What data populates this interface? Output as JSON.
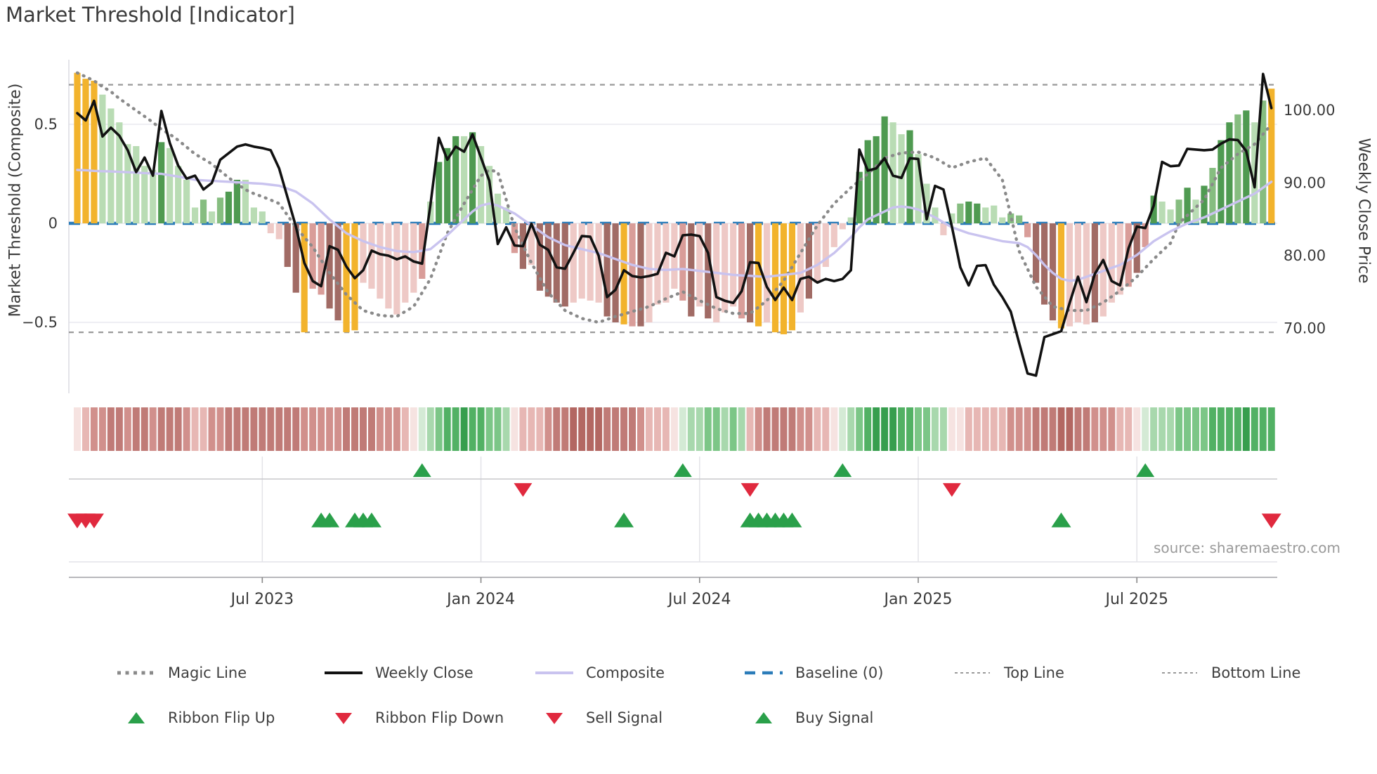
{
  "title": "Market Threshold [Indicator]",
  "source": "source: sharemaestro.com",
  "axes": {
    "left_label": "Market Threshold (Composite)",
    "right_label": "Weekly Close Price",
    "left_ticks": [
      {
        "label": "0.5",
        "value": 0.5
      },
      {
        "label": "0",
        "value": 0
      },
      {
        "label": "−0.5",
        "value": -0.5
      }
    ],
    "right_ticks": [
      {
        "label": "100.00",
        "value": 100
      },
      {
        "label": "90.00",
        "value": 90
      },
      {
        "label": "80.00",
        "value": 80
      },
      {
        "label": "70.00",
        "value": 70
      }
    ],
    "x_ticks": [
      {
        "label": "Jul 2023",
        "week": 22
      },
      {
        "label": "Jan 2024",
        "week": 48
      },
      {
        "label": "Jul 2024",
        "week": 74
      },
      {
        "label": "Jan 2025",
        "week": 100
      },
      {
        "label": "Jul 2025",
        "week": 126
      }
    ]
  },
  "colors": {
    "bar_yellow": "#f2b32c",
    "bar_green_light": "#b9dcb4",
    "bar_green_mid": "#86bd80",
    "bar_green_dark": "#4f9a51",
    "bar_pink_light": "#eec9c6",
    "bar_pink_mid": "#d99d99",
    "bar_brown": "#a16b65",
    "ribbon_reds": [
      "#f6e3e1",
      "#e7b7b4",
      "#d1908c",
      "#c07b77",
      "#b36762"
    ],
    "ribbon_greens": [
      "#d4ead5",
      "#a8d8ad",
      "#7cc687",
      "#52b164",
      "#379e4e"
    ],
    "weekly_close": "#111111",
    "composite": "#c9c3ef",
    "magic": "#8a8a8a",
    "baseline": "#2b7cb9",
    "top_bottom": "#999999",
    "buy": "#2aa04a",
    "sell": "#e0293e",
    "grid": "#e9e9ef",
    "panel_line": "#c8c8cc",
    "spine": "#b8b8bc"
  },
  "legend": {
    "row1": [
      {
        "label": "Magic Line",
        "type": "magic"
      },
      {
        "label": "Weekly Close",
        "type": "close"
      },
      {
        "label": "Composite",
        "type": "composite"
      },
      {
        "label": "Baseline (0)",
        "type": "baseline"
      },
      {
        "label": "Top Line",
        "type": "fine-dash"
      },
      {
        "label": "Bottom Line",
        "type": "fine-dash"
      }
    ],
    "row2": [
      {
        "label": "Ribbon Flip Up",
        "type": "tri-up"
      },
      {
        "label": "Ribbon Flip Down",
        "type": "tri-down"
      },
      {
        "label": "Sell Signal",
        "type": "tri-down"
      },
      {
        "label": "Buy Signal",
        "type": "tri-up"
      }
    ]
  },
  "chart_data": {
    "type": "bar+line combo with heatmap ribbon and signal markers",
    "title": "Market Threshold [Indicator]",
    "weeks": 143,
    "x_range_note": "weekly data, ticks at weeks 22/48/74/100/126 = Jul 2023..Jul 2025",
    "ylim_left": [
      -0.86,
      0.83
    ],
    "ylim_right": [
      61,
      107
    ],
    "top_line": 0.7,
    "bottom_line": -0.55,
    "baseline": 0,
    "threshold_bars": [
      0.76,
      0.73,
      0.72,
      0.65,
      0.58,
      0.51,
      0.4,
      0.39,
      0.29,
      0.27,
      0.41,
      0.38,
      0.29,
      0.22,
      0.08,
      0.12,
      0.06,
      0.13,
      0.16,
      0.22,
      0.22,
      0.08,
      0.06,
      -0.05,
      -0.08,
      -0.22,
      -0.35,
      -0.55,
      -0.33,
      -0.36,
      -0.43,
      -0.49,
      -0.55,
      -0.54,
      -0.3,
      -0.33,
      -0.38,
      -0.43,
      -0.46,
      -0.4,
      -0.35,
      -0.28,
      0.11,
      0.31,
      0.38,
      0.44,
      0.44,
      0.46,
      0.39,
      0.29,
      0.15,
      0.08,
      -0.15,
      -0.23,
      -0.21,
      -0.34,
      -0.37,
      -0.4,
      -0.42,
      -0.4,
      -0.38,
      -0.39,
      -0.4,
      -0.47,
      -0.5,
      -0.51,
      -0.52,
      -0.52,
      -0.5,
      -0.41,
      -0.4,
      -0.33,
      -0.39,
      -0.47,
      -0.42,
      -0.48,
      -0.5,
      -0.45,
      -0.42,
      -0.48,
      -0.5,
      -0.52,
      -0.5,
      -0.55,
      -0.56,
      -0.54,
      -0.45,
      -0.38,
      -0.3,
      -0.22,
      -0.12,
      -0.03,
      0.03,
      0.26,
      0.42,
      0.44,
      0.54,
      0.51,
      0.45,
      0.47,
      0.35,
      0.2,
      0.08,
      -0.06,
      0.05,
      0.1,
      0.11,
      0.1,
      0.08,
      0.09,
      0.03,
      0.05,
      0.04,
      -0.07,
      -0.3,
      -0.41,
      -0.49,
      -0.53,
      -0.52,
      -0.5,
      -0.51,
      -0.5,
      -0.47,
      -0.4,
      -0.36,
      -0.32,
      -0.25,
      -0.12,
      0.14,
      0.11,
      0.07,
      0.12,
      0.18,
      0.12,
      0.19,
      0.28,
      0.42,
      0.51,
      0.55,
      0.57,
      0.51,
      0.62,
      0.68
    ],
    "bar_colors": [
      "Y",
      "Y",
      "Y",
      "g1",
      "g1",
      "g1",
      "g1",
      "g1",
      "g1",
      "g1",
      "g3",
      "g1",
      "g1",
      "g1",
      "g1",
      "g2",
      "g1",
      "g2",
      "g3",
      "g3",
      "g1",
      "g1",
      "g1",
      "p1",
      "p1",
      "p3",
      "p3",
      "Y",
      "p2",
      "p2",
      "p3",
      "p3",
      "Y",
      "Y",
      "p1",
      "p1",
      "p1",
      "p1",
      "p1",
      "p1",
      "p1",
      "p2",
      "g1",
      "g3",
      "g3",
      "g3",
      "g1",
      "g3",
      "g1",
      "g1",
      "g1",
      "g1",
      "p2",
      "p3",
      "p1",
      "p3",
      "p3",
      "p3",
      "p3",
      "p1",
      "p1",
      "p1",
      "p1",
      "p3",
      "p3",
      "Y",
      "p2",
      "p3",
      "p1",
      "p1",
      "p1",
      "p1",
      "p2",
      "p3",
      "p1",
      "p3",
      "p1",
      "p1",
      "p1",
      "p2",
      "p3",
      "Y",
      "p1",
      "Y",
      "Y",
      "Y",
      "p1",
      "p3",
      "p1",
      "p1",
      "p1",
      "p1",
      "g1",
      "g3",
      "g3",
      "g3",
      "g3",
      "g1",
      "g1",
      "g3",
      "g1",
      "g1",
      "g1",
      "p1",
      "g1",
      "g2",
      "g3",
      "g3",
      "g1",
      "g1",
      "g1",
      "g2",
      "g2",
      "p2",
      "p3",
      "p3",
      "p3",
      "Y",
      "p1",
      "p1",
      "p1",
      "p3",
      "p1",
      "p1",
      "p1",
      "p2",
      "p3",
      "p2",
      "g3",
      "g1",
      "g1",
      "g2",
      "g3",
      "g1",
      "g3",
      "g2",
      "g3",
      "g3",
      "g2",
      "g3",
      "g1",
      "g2",
      "Y"
    ],
    "weekly_close": [
      99.6,
      98.6,
      101.3,
      96.4,
      97.6,
      96.5,
      94.5,
      91.5,
      93.5,
      91.0,
      99.9,
      95.5,
      92.4,
      90.6,
      91.0,
      89.1,
      90.0,
      93.2,
      94.1,
      95.0,
      95.3,
      95.0,
      94.8,
      94.5,
      92.0,
      88.0,
      84.0,
      79.0,
      76.5,
      75.8,
      81.3,
      80.8,
      78.5,
      76.9,
      78.0,
      80.7,
      80.2,
      80.0,
      79.5,
      79.9,
      79.2,
      78.9,
      87.0,
      96.2,
      93.2,
      95.0,
      94.3,
      96.7,
      93.5,
      90.3,
      81.6,
      83.9,
      81.4,
      81.3,
      84.4,
      81.5,
      80.8,
      78.4,
      78.2,
      80.4,
      82.7,
      82.6,
      80.0,
      74.3,
      75.3,
      78.0,
      77.2,
      77.0,
      77.2,
      77.5,
      80.4,
      79.9,
      82.8,
      82.9,
      82.7,
      80.4,
      74.3,
      73.8,
      73.5,
      75.1,
      79.1,
      79.0,
      75.7,
      73.9,
      75.6,
      73.9,
      76.8,
      77.1,
      76.3,
      76.8,
      76.5,
      76.8,
      78.0,
      94.6,
      91.7,
      92.0,
      93.4,
      91.0,
      90.7,
      93.4,
      93.3,
      85.0,
      89.6,
      89.1,
      84.0,
      78.4,
      75.9,
      78.6,
      78.7,
      76.0,
      74.3,
      72.3,
      68.0,
      63.8,
      63.5,
      68.8,
      69.2,
      69.6,
      73.5,
      77.1,
      73.6,
      77.5,
      79.4,
      76.5,
      75.9,
      81.0,
      84.0,
      83.8,
      86.9,
      92.9,
      92.3,
      92.4,
      94.7,
      94.6,
      94.5,
      94.6,
      95.4,
      96.0,
      95.9,
      94.4,
      89.4,
      105.0,
      100.3
    ],
    "composite": [
      0.27,
      0.268,
      0.265,
      0.263,
      0.262,
      0.26,
      0.258,
      0.256,
      0.254,
      0.252,
      0.25,
      0.243,
      0.236,
      0.228,
      0.22,
      0.217,
      0.215,
      0.212,
      0.21,
      0.207,
      0.205,
      0.202,
      0.2,
      0.195,
      0.19,
      0.175,
      0.16,
      0.13,
      0.1,
      0.06,
      0.02,
      -0.015,
      -0.05,
      -0.07,
      -0.09,
      -0.105,
      -0.12,
      -0.13,
      -0.14,
      -0.143,
      -0.145,
      -0.138,
      -0.13,
      -0.095,
      -0.06,
      -0.02,
      0.02,
      0.06,
      0.09,
      0.1,
      0.09,
      0.07,
      0.05,
      0.02,
      -0.01,
      -0.04,
      -0.07,
      -0.09,
      -0.11,
      -0.12,
      -0.13,
      -0.14,
      -0.15,
      -0.165,
      -0.18,
      -0.195,
      -0.21,
      -0.22,
      -0.23,
      -0.233,
      -0.235,
      -0.233,
      -0.23,
      -0.235,
      -0.24,
      -0.245,
      -0.25,
      -0.255,
      -0.26,
      -0.263,
      -0.265,
      -0.268,
      -0.27,
      -0.265,
      -0.26,
      -0.255,
      -0.25,
      -0.23,
      -0.21,
      -0.18,
      -0.15,
      -0.11,
      -0.07,
      -0.02,
      0.02,
      0.04,
      0.06,
      0.08,
      0.085,
      0.08,
      0.07,
      0.05,
      0.03,
      0.005,
      -0.02,
      -0.035,
      -0.05,
      -0.06,
      -0.07,
      -0.08,
      -0.09,
      -0.095,
      -0.1,
      -0.12,
      -0.16,
      -0.21,
      -0.25,
      -0.28,
      -0.29,
      -0.285,
      -0.27,
      -0.255,
      -0.24,
      -0.225,
      -0.21,
      -0.185,
      -0.16,
      -0.125,
      -0.09,
      -0.065,
      -0.04,
      -0.02,
      0.0,
      0.015,
      0.03,
      0.05,
      0.07,
      0.09,
      0.11,
      0.13,
      0.15,
      0.18,
      0.21
    ],
    "magic_line": [
      0.76,
      0.74,
      0.72,
      0.69,
      0.665,
      0.63,
      0.6,
      0.57,
      0.54,
      0.51,
      0.475,
      0.45,
      0.42,
      0.385,
      0.35,
      0.325,
      0.3,
      0.265,
      0.23,
      0.2,
      0.17,
      0.15,
      0.135,
      0.118,
      0.1,
      0.04,
      -0.02,
      -0.07,
      -0.12,
      -0.185,
      -0.25,
      -0.305,
      -0.36,
      -0.4,
      -0.44,
      -0.453,
      -0.465,
      -0.468,
      -0.47,
      -0.445,
      -0.42,
      -0.35,
      -0.28,
      -0.165,
      -0.05,
      0.025,
      0.1,
      0.17,
      0.24,
      0.27,
      0.26,
      0.12,
      -0.02,
      -0.11,
      -0.2,
      -0.275,
      -0.35,
      -0.395,
      -0.44,
      -0.46,
      -0.48,
      -0.49,
      -0.5,
      -0.485,
      -0.47,
      -0.458,
      -0.445,
      -0.433,
      -0.42,
      -0.4,
      -0.38,
      -0.363,
      -0.345,
      -0.368,
      -0.39,
      -0.41,
      -0.43,
      -0.443,
      -0.455,
      -0.455,
      -0.455,
      -0.423,
      -0.39,
      -0.34,
      -0.29,
      -0.22,
      -0.15,
      -0.08,
      -0.01,
      0.045,
      0.1,
      0.14,
      0.18,
      0.215,
      0.25,
      0.29,
      0.33,
      0.343,
      0.355,
      0.358,
      0.36,
      0.345,
      0.33,
      0.305,
      0.28,
      0.295,
      0.31,
      0.32,
      0.33,
      0.275,
      0.22,
      0.04,
      -0.14,
      -0.23,
      -0.32,
      -0.37,
      -0.42,
      -0.43,
      -0.44,
      -0.44,
      -0.44,
      -0.42,
      -0.4,
      -0.37,
      -0.34,
      -0.305,
      -0.27,
      -0.225,
      -0.18,
      -0.14,
      -0.1,
      0.0,
      0.04,
      0.08,
      0.12,
      0.2,
      0.28,
      0.315,
      0.35,
      0.375,
      0.4,
      0.45,
      0.5
    ],
    "ribbon": [
      "r1",
      "r2",
      "r3",
      "r3",
      "r4",
      "r4",
      "r3",
      "r4",
      "r4",
      "r3",
      "r4",
      "r4",
      "r4",
      "r3",
      "r2",
      "r2",
      "r3",
      "r3",
      "r4",
      "r4",
      "r4",
      "r4",
      "r4",
      "r4",
      "r4",
      "r4",
      "r4",
      "r3",
      "r3",
      "r3",
      "r3",
      "r3",
      "r4",
      "r4",
      "r4",
      "r4",
      "r3",
      "r3",
      "r3",
      "r2",
      "r1",
      "g1",
      "g2",
      "g3",
      "g4",
      "g4",
      "g5",
      "g4",
      "g4",
      "g3",
      "g3",
      "g2",
      "r1",
      "r2",
      "r2",
      "r2",
      "r3",
      "r4",
      "r4",
      "r5",
      "r5",
      "r5",
      "r5",
      "r4",
      "r4",
      "r4",
      "r4",
      "r3",
      "r2",
      "r2",
      "r2",
      "r1",
      "g1",
      "g2",
      "g2",
      "g3",
      "g3",
      "g2",
      "g3",
      "g2",
      "r2",
      "r3",
      "r4",
      "r4",
      "r4",
      "r4",
      "r3",
      "r3",
      "r2",
      "r2",
      "r1",
      "g1",
      "g2",
      "g3",
      "g4",
      "g5",
      "g5",
      "g5",
      "g4",
      "g4",
      "g3",
      "g3",
      "g2",
      "g2",
      "r1",
      "r1",
      "r2",
      "r2",
      "r2",
      "r2",
      "r2",
      "r3",
      "r3",
      "r3",
      "r4",
      "r4",
      "r4",
      "r5",
      "r5",
      "r4",
      "r4",
      "r3",
      "r3",
      "r3",
      "r2",
      "r2",
      "r1",
      "g1",
      "g2",
      "g2",
      "g2",
      "g3",
      "g3",
      "g3",
      "g3",
      "g4",
      "g4",
      "g4",
      "g4",
      "g5",
      "g4",
      "g4",
      "g4"
    ],
    "signals": {
      "ribbon_flip_up_weeks": [
        41,
        72,
        91,
        127
      ],
      "ribbon_flip_down_weeks": [
        53,
        80,
        104
      ],
      "buy_weeks": [
        29,
        30,
        33,
        34,
        35,
        65,
        80,
        81,
        82,
        83,
        84,
        85,
        117
      ],
      "sell_weeks": [
        0,
        1,
        2,
        142
      ]
    }
  }
}
